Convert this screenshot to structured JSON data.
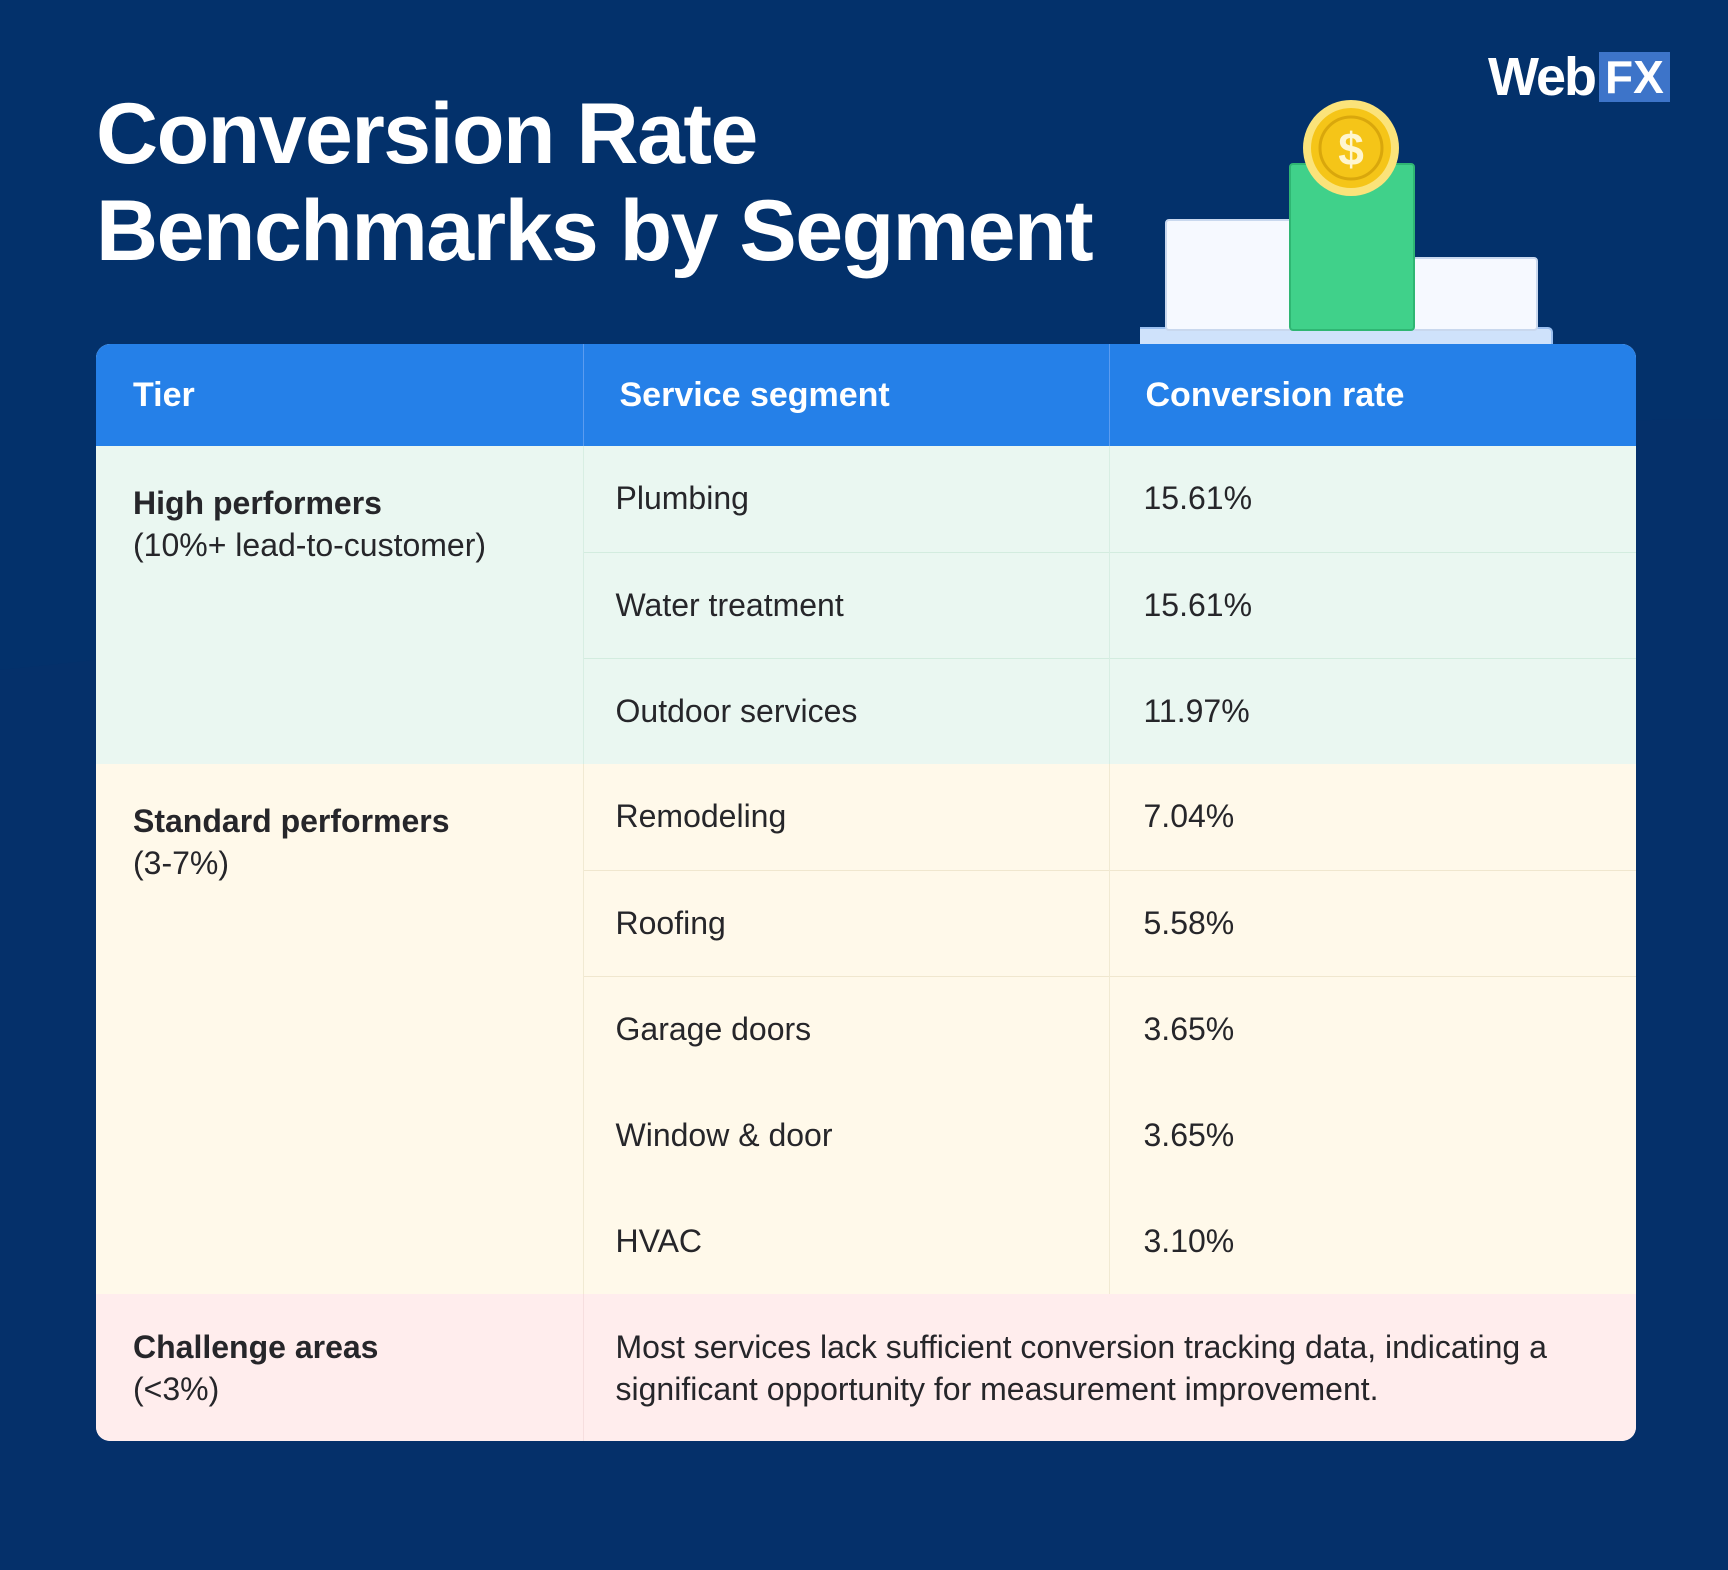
{
  "title": {
    "line1": "Conversion Rate",
    "line2": "Benchmarks by Segment"
  },
  "brand": {
    "name_web": "Web",
    "name_fx": "FX"
  },
  "illustration": {
    "coin_symbol": "$",
    "icon": "bar-chart-with-coin-icon"
  },
  "colors": {
    "background": "#03316b",
    "header": "#2580e8",
    "high_tier": "#eaf7f1",
    "standard_tier": "#fff9ea",
    "challenge_tier": "#ffeded",
    "green_bar": "#40d18a",
    "coin": "#f5c518"
  },
  "table": {
    "headers": [
      "Tier",
      "Service segment",
      "Conversion rate"
    ],
    "high": {
      "name": "High performers",
      "sub": "(10%+ lead-to-customer)",
      "rows": [
        {
          "segment": "Plumbing",
          "rate": "15.61%"
        },
        {
          "segment": "Water treatment",
          "rate": "15.61%"
        },
        {
          "segment": "Outdoor services",
          "rate": "11.97%"
        }
      ]
    },
    "standard": {
      "name": "Standard performers",
      "sub": "(3-7%)",
      "rows": [
        {
          "segment": "Remodeling",
          "rate": "7.04%"
        },
        {
          "segment": "Roofing",
          "rate": "5.58%"
        },
        {
          "segment": "Garage doors",
          "rate": "3.65%"
        },
        {
          "segment": "Window & door",
          "rate": "3.65%"
        },
        {
          "segment": "HVAC",
          "rate": "3.10%"
        }
      ]
    },
    "challenge": {
      "name": "Challenge areas",
      "sub": "(<3%)",
      "note": "Most services lack sufficient conversion tracking data, indicating a significant opportunity for measurement improvement."
    }
  }
}
